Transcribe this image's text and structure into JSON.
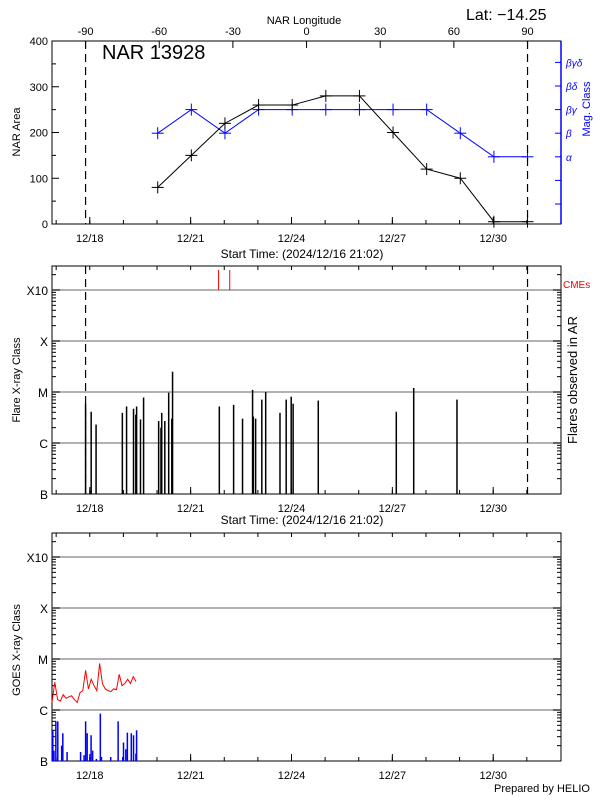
{
  "start_time": "2024/12/16 21:02",
  "footer": "Prepared by HELIO",
  "colors": {
    "axis": "#000000",
    "mag": "#0000ff",
    "cme": "#ff0000",
    "grid": "#999999",
    "goes_long": "#ff0000",
    "goes_short": "#0000ff"
  },
  "chart_data": [
    {
      "type": "line",
      "region_label": "NAR 13928",
      "lat_label": "Lat: −14.25",
      "top_axis_label": "NAR Longitude",
      "lon_ticks": [
        "-90",
        "-60",
        "-30",
        "0",
        "30",
        "60",
        "90"
      ],
      "limb_times": [
        "12/17 21:00",
        "12/31 00:30"
      ],
      "x_ticks": [
        "12/18",
        "12/21",
        "12/24",
        "12/27",
        "12/30"
      ],
      "xlabel": "Start Time: (2024/12/16 21:02)",
      "ylabel": "NAR Area",
      "ylim": [
        0,
        400
      ],
      "y_ticks": [
        "0",
        "100",
        "200",
        "300",
        "400"
      ],
      "y2label": "Mag. Class",
      "y2_ticks": [
        "α",
        "β",
        "βγ",
        "βδ",
        "βγδ"
      ],
      "times": [
        "12/20 00:30",
        "12/21 00:30",
        "12/22 00:30",
        "12/23 00:30",
        "12/24 00:30",
        "12/25 00:30",
        "12/26 00:30",
        "12/27 00:30",
        "12/28 00:30",
        "12/29 00:30",
        "12/30 00:30",
        "12/31 00:30"
      ],
      "area": [
        80,
        150,
        220,
        260,
        260,
        280,
        280,
        200,
        120,
        100,
        5,
        5
      ],
      "mag_class": [
        "β",
        "βγ",
        "β",
        "βγ",
        "βγ",
        "βγ",
        "βγ",
        "βγ",
        "βγ",
        "β",
        "α",
        "α"
      ]
    },
    {
      "type": "bar",
      "xlabel": "Start Time: (2024/12/16 21:02)",
      "x_ticks": [
        "12/18",
        "12/21",
        "12/24",
        "12/27",
        "12/30"
      ],
      "ylabel": "Flare X-ray Class",
      "y2label": "Flares observed in AR",
      "y_ticks": [
        "B",
        "C",
        "M",
        "X",
        "X10"
      ],
      "limb_times": [
        "12/17 21:00",
        "12/31 00:30"
      ],
      "grid": true,
      "flares": [
        {
          "time": "12/17 21:00",
          "class": "C5.9"
        },
        {
          "time": "12/18 01:00",
          "class": "C4.1"
        },
        {
          "time": "12/18 04:30",
          "class": "C2.3"
        },
        {
          "time": "12/18 23:15",
          "class": "C3.9"
        },
        {
          "time": "12/19 02:16",
          "class": "C5.2"
        },
        {
          "time": "12/19 07:14",
          "class": "C4.7"
        },
        {
          "time": "12/19 08:53",
          "class": "C3.6"
        },
        {
          "time": "12/19 09:26",
          "class": "C5.2"
        },
        {
          "time": "12/19 12:12",
          "class": "C2.9"
        },
        {
          "time": "12/19 14:25",
          "class": "C7.8"
        },
        {
          "time": "12/20 01:10",
          "class": "C2.7"
        },
        {
          "time": "12/20 02:49",
          "class": "C2.0"
        },
        {
          "time": "12/20 03:22",
          "class": "C3.9"
        },
        {
          "time": "12/20 05:34",
          "class": "C2.7"
        },
        {
          "time": "12/20 08:20",
          "class": "C9.7"
        },
        {
          "time": "12/20 10:33",
          "class": "C3.0"
        },
        {
          "time": "12/20 11:06",
          "class": "M2.5"
        },
        {
          "time": "12/21 20:29",
          "class": "C5.2"
        },
        {
          "time": "12/22 06:41",
          "class": "C5.6"
        },
        {
          "time": "12/22 13:03",
          "class": "C3.0"
        },
        {
          "time": "12/22 20:13",
          "class": "M1.1"
        },
        {
          "time": "12/22 20:46",
          "class": "C3.3"
        },
        {
          "time": "12/22 22:24",
          "class": "C3.0"
        },
        {
          "time": "12/23 02:49",
          "class": "C7.1"
        },
        {
          "time": "12/23 05:35",
          "class": "M1.0"
        },
        {
          "time": "12/23 15:47",
          "class": "C3.9"
        },
        {
          "time": "12/23 20:13",
          "class": "C7.1"
        },
        {
          "time": "12/23 23:47",
          "class": "C8.1"
        },
        {
          "time": "12/24 01:10",
          "class": "C5.9"
        },
        {
          "time": "12/24 19:07",
          "class": "C6.8"
        },
        {
          "time": "12/27 02:49",
          "class": "C4.1"
        },
        {
          "time": "12/27 15:15",
          "class": "M1.2"
        },
        {
          "time": "12/28 22:08",
          "class": "C7.1"
        }
      ],
      "cmes": {
        "label": "CMEs",
        "times": [
          "12/21 19:56",
          "12/22 03:55"
        ]
      }
    },
    {
      "type": "line",
      "x_ticks": [
        "12/18",
        "12/21",
        "12/24",
        "12/27",
        "12/30"
      ],
      "ylabel": "GOES X-ray Class",
      "y_ticks": [
        "B",
        "C",
        "M",
        "X",
        "X10"
      ],
      "grid": true,
      "long_channel": {
        "times": [
          "12/16 21:02",
          "12/16 23:02",
          "12/17 01:02",
          "12/17 03:02",
          "12/17 05:02",
          "12/17 07:02",
          "12/17 09:02",
          "12/17 11:02",
          "12/17 13:02",
          "12/17 15:02",
          "12/17 17:02",
          "12/17 19:02",
          "12/17 21:02",
          "12/17 23:02",
          "12/18 01:02",
          "12/18 03:02",
          "12/18 05:02",
          "12/18 07:02",
          "12/18 09:02",
          "12/18 11:02",
          "12/18 13:02",
          "12/18 15:02",
          "12/18 17:02",
          "12/18 19:02",
          "12/18 21:02",
          "12/18 23:02",
          "12/19 01:02",
          "12/19 03:02",
          "12/19 05:02",
          "12/19 07:02",
          "12/19 09:02"
        ],
        "values": [
          "C1.4",
          "C3.5",
          "C1.6",
          "C1.5",
          "C2.0",
          "C1.7",
          "C1.8",
          "C1.9",
          "C1.6",
          "C1.4",
          "C2.2",
          "C2.4",
          "C6.0",
          "C2.6",
          "C4.0",
          "C3.0",
          "C2.4",
          "C8.2",
          "C3.3",
          "C2.6",
          "C2.4",
          "C2.3",
          "C2.6",
          "C2.5",
          "C5.0",
          "C3.0",
          "C3.3",
          "C4.0",
          "C3.3",
          "C4.5",
          "C3.6"
        ]
      },
      "short_channel": {
        "times": [
          "12/16 21:35",
          "12/16 22:25",
          "12/16 23:47",
          "12/17 01:10",
          "12/17 03:56",
          "12/17 04:45",
          "12/17 07:48",
          "12/17 17:26",
          "12/17 19:56",
          "12/17 21:02",
          "12/17 22:08",
          "12/18 00:56",
          "12/18 02:02",
          "12/18 04:45",
          "12/18 07:32",
          "12/18 08:20",
          "12/18 14:56",
          "12/18 20:14",
          "12/18 23:32",
          "12/19 00:05",
          "12/19 01:44",
          "12/19 02:50",
          "12/19 05:38",
          "12/19 07:14",
          "12/19 08:56",
          "12/19 09:26"
        ],
        "values": [
          "B4.0",
          "B1.6",
          "B6.0",
          "B6.0",
          "B2.0",
          "B3.5",
          "B1.5",
          "B1.5",
          "B1.3",
          "B6.0",
          "B3.5",
          "B3.2",
          "B1.6",
          "B1.1",
          "B8.5",
          "B1.2",
          "B1.2",
          "B6.0",
          "B1.2",
          "B2.3",
          "B1.7",
          "B3.6",
          "B3.5",
          "B3.2",
          "B1.4",
          "B4.0"
        ]
      }
    }
  ]
}
